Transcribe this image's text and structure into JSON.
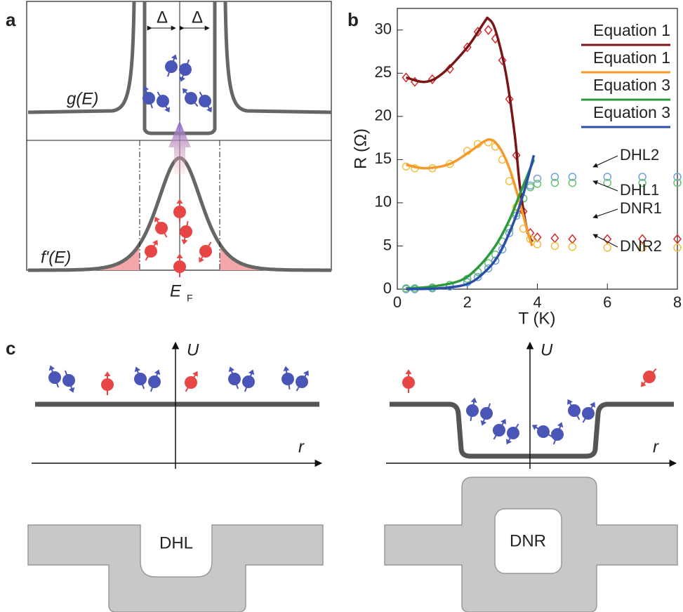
{
  "panel_a": {
    "label": "a",
    "gap_left": "Δ",
    "gap_right": "Δ",
    "dos_label": "g(E)",
    "derivative_label": "f'(E)",
    "axis_label": "E",
    "axis_label_sub": "F"
  },
  "chart_data": {
    "type": "line",
    "label": "b",
    "xlabel": "T (K)",
    "ylabel": "R (Ω)",
    "xlim": [
      0,
      8
    ],
    "ylim": [
      0,
      32.5
    ],
    "xticks": [
      0,
      2,
      4,
      6,
      8
    ],
    "yticks": [
      0,
      5,
      10,
      15,
      20,
      25,
      30
    ],
    "series": [
      {
        "name": "Equation 1",
        "color": "#7a1416",
        "kind": "line",
        "x": [
          0.25,
          0.8,
          1.3,
          2,
          2.5,
          2.6,
          2.8,
          3.1,
          3.35,
          3.5,
          3.7,
          3.85
        ],
        "values": [
          24.5,
          24,
          25,
          28,
          31,
          31.3,
          30,
          25,
          18,
          12,
          7,
          5.5
        ]
      },
      {
        "name": "Equation 1",
        "color": "#f39a2a",
        "kind": "line",
        "x": [
          0.25,
          0.8,
          1.5,
          2.1,
          2.6,
          2.9,
          3.2,
          3.5,
          3.7,
          3.85
        ],
        "values": [
          14.4,
          14,
          14.5,
          16,
          17.3,
          16.5,
          14,
          10,
          7,
          5
        ]
      },
      {
        "name": "Equation 3",
        "color": "#2a9a3c",
        "kind": "line",
        "x": [
          0.25,
          1,
          1.8,
          2.3,
          2.8,
          3.2,
          3.5,
          3.7,
          3.9
        ],
        "values": [
          0.1,
          0.3,
          1,
          2.5,
          5,
          8,
          11,
          13,
          15
        ]
      },
      {
        "name": "Equation 3",
        "color": "#2b4fa8",
        "kind": "line",
        "x": [
          0.25,
          1.2,
          2,
          2.5,
          2.9,
          3.3,
          3.6,
          3.9
        ],
        "values": [
          0,
          0.1,
          0.6,
          2,
          4,
          7.5,
          11,
          15.5
        ]
      },
      {
        "name": "DHL2",
        "color": "#6fa0e0",
        "kind": "markers",
        "marker": "circle",
        "x": [
          0.25,
          0.5,
          1,
          1.5,
          2,
          2.3,
          2.6,
          2.8,
          3,
          3.2,
          3.4,
          3.6,
          3.8,
          4,
          4.5,
          5,
          6,
          7,
          8
        ],
        "values": [
          0,
          0,
          0.1,
          0.3,
          0.8,
          1.4,
          2.4,
          3.3,
          4.6,
          6.5,
          8.5,
          10.5,
          12,
          12.8,
          13,
          13,
          13,
          13,
          13
        ]
      },
      {
        "name": "DHL1",
        "color": "#6cc070",
        "kind": "markers",
        "marker": "circle",
        "x": [
          0.25,
          0.5,
          1,
          1.5,
          2,
          2.3,
          2.6,
          2.8,
          3,
          3.2,
          3.4,
          3.6,
          3.8,
          4,
          4.5,
          5,
          6,
          7,
          8
        ],
        "values": [
          0.1,
          0.1,
          0.2,
          0.5,
          1.2,
          2,
          3,
          4,
          5.5,
          7,
          8.8,
          10.5,
          11.8,
          12.2,
          12.3,
          12.3,
          12.3,
          12.3,
          12.3
        ]
      },
      {
        "name": "DNR1",
        "color": "#d42b2b",
        "kind": "markers",
        "marker": "diamond",
        "x": [
          0.25,
          0.5,
          1,
          1.5,
          2,
          2.3,
          2.6,
          2.8,
          3,
          3.2,
          3.4,
          3.6,
          3.8,
          4,
          4.5,
          5,
          6,
          7,
          8
        ],
        "values": [
          24.5,
          24,
          24.3,
          25.5,
          28,
          29.8,
          30,
          29,
          26.5,
          22,
          15.5,
          9,
          6.5,
          6,
          5.9,
          5.8,
          5.8,
          5.8,
          5.8
        ]
      },
      {
        "name": "DNR2",
        "color": "#f0c040",
        "kind": "markers",
        "marker": "circle",
        "x": [
          0.25,
          0.5,
          1,
          1.5,
          2,
          2.3,
          2.6,
          2.8,
          3,
          3.2,
          3.4,
          3.6,
          3.8,
          4,
          4.5,
          5,
          6,
          7,
          8
        ],
        "values": [
          14.2,
          14,
          14,
          14.5,
          16,
          16.8,
          17,
          16.5,
          15,
          12.5,
          9.5,
          7,
          5.8,
          5.2,
          5,
          4.9,
          4.8,
          4.8,
          4.8
        ]
      }
    ]
  },
  "panel_c": {
    "label": "c",
    "left": {
      "axis_y": "U",
      "axis_x": "r",
      "region": "DHL"
    },
    "right": {
      "axis_y": "U",
      "axis_x": "r",
      "region": "DNR"
    }
  }
}
